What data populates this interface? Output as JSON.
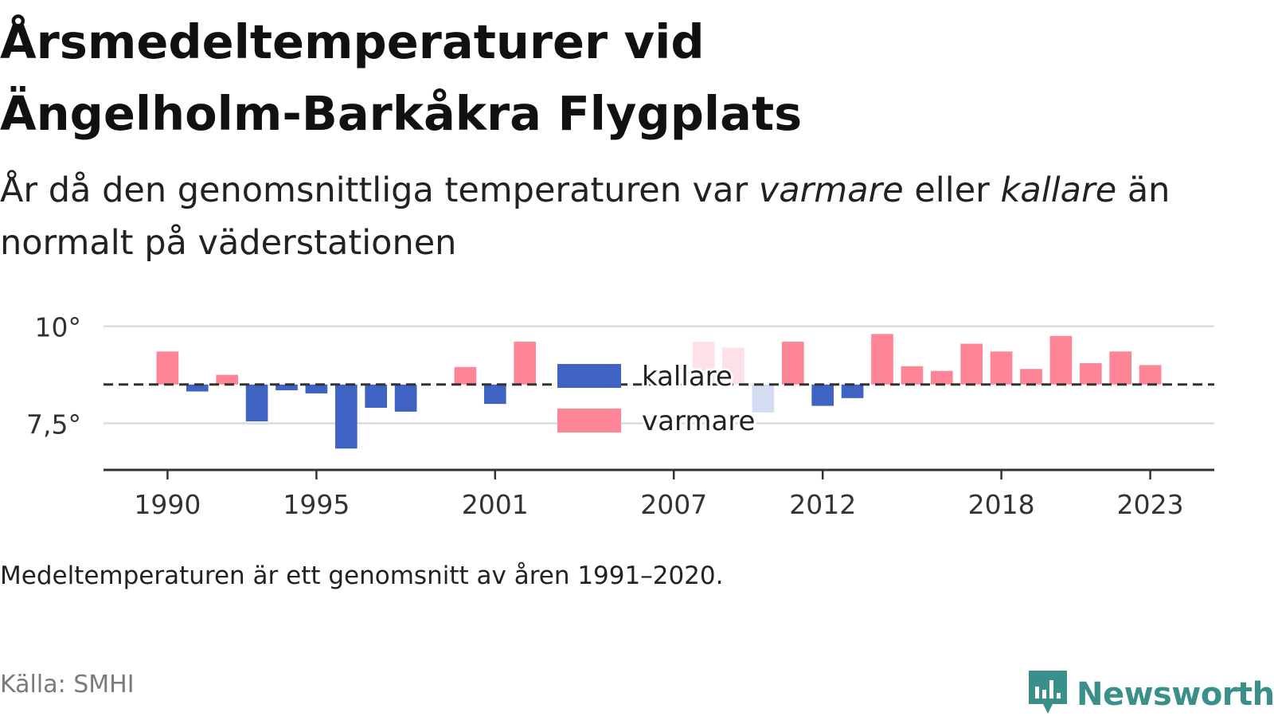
{
  "header": {
    "title_line1": "Årsmedeltemperaturer vid",
    "title_line2": "Ängelholm-Barkåkra Flygplats",
    "subtitle_part1": "År då den genomsnittliga temperaturen var ",
    "subtitle_warm": "varmare",
    "subtitle_part2": " eller ",
    "subtitle_cold": "kallare",
    "subtitle_part3": " än normalt på väderstationen"
  },
  "chart_data": {
    "type": "bar",
    "baseline": 8.5,
    "ylim": [
      6.3,
      10.3
    ],
    "yticks": [
      {
        "value": 10,
        "label": "10°"
      },
      {
        "value": 7.5,
        "label": "7,5°"
      }
    ],
    "xticks": [
      1990,
      1995,
      2001,
      2007,
      2012,
      2018,
      2023
    ],
    "xlim": [
      1987.85,
      2025.15
    ],
    "categories": [
      1990,
      1991,
      1992,
      1993,
      1994,
      1995,
      1996,
      1997,
      1998,
      1999,
      2000,
      2001,
      2002,
      2003,
      2004,
      2005,
      2006,
      2007,
      2008,
      2009,
      2010,
      2011,
      2012,
      2013,
      2014,
      2015,
      2016,
      2017,
      2018,
      2019,
      2020,
      2021,
      2022,
      2023
    ],
    "values": [
      9.35,
      8.32,
      8.75,
      7.55,
      8.35,
      8.27,
      6.85,
      7.9,
      7.8,
      null,
      8.95,
      8.0,
      9.6,
      null,
      null,
      null,
      null,
      null,
      9.6,
      9.45,
      7.78,
      9.6,
      7.95,
      8.15,
      9.8,
      8.97,
      8.85,
      9.55,
      9.35,
      8.9,
      9.75,
      9.05,
      9.35,
      9.0
    ],
    "faded_years": [
      2008,
      2009,
      2010
    ],
    "legend": [
      {
        "key": "cold",
        "label": "kallare"
      },
      {
        "key": "warm",
        "label": "varmare"
      }
    ],
    "legend_position": "center"
  },
  "colors": {
    "warm": "#fe8596",
    "cold": "#3f63c2",
    "warm_faded": "#fde1e6",
    "cold_faded": "#d3dcf0",
    "grid": "#dcdcdc",
    "axis": "#333333",
    "baseline": "#333333",
    "brand": "#3a8f8a"
  },
  "footer": {
    "note": "Medeltemperaturen är ett genomsnitt av åren 1991–2020.",
    "source": "Källa: SMHI",
    "brand_name": "Newsworthy",
    "brand_icon": "newsworthy-logo-icon"
  }
}
